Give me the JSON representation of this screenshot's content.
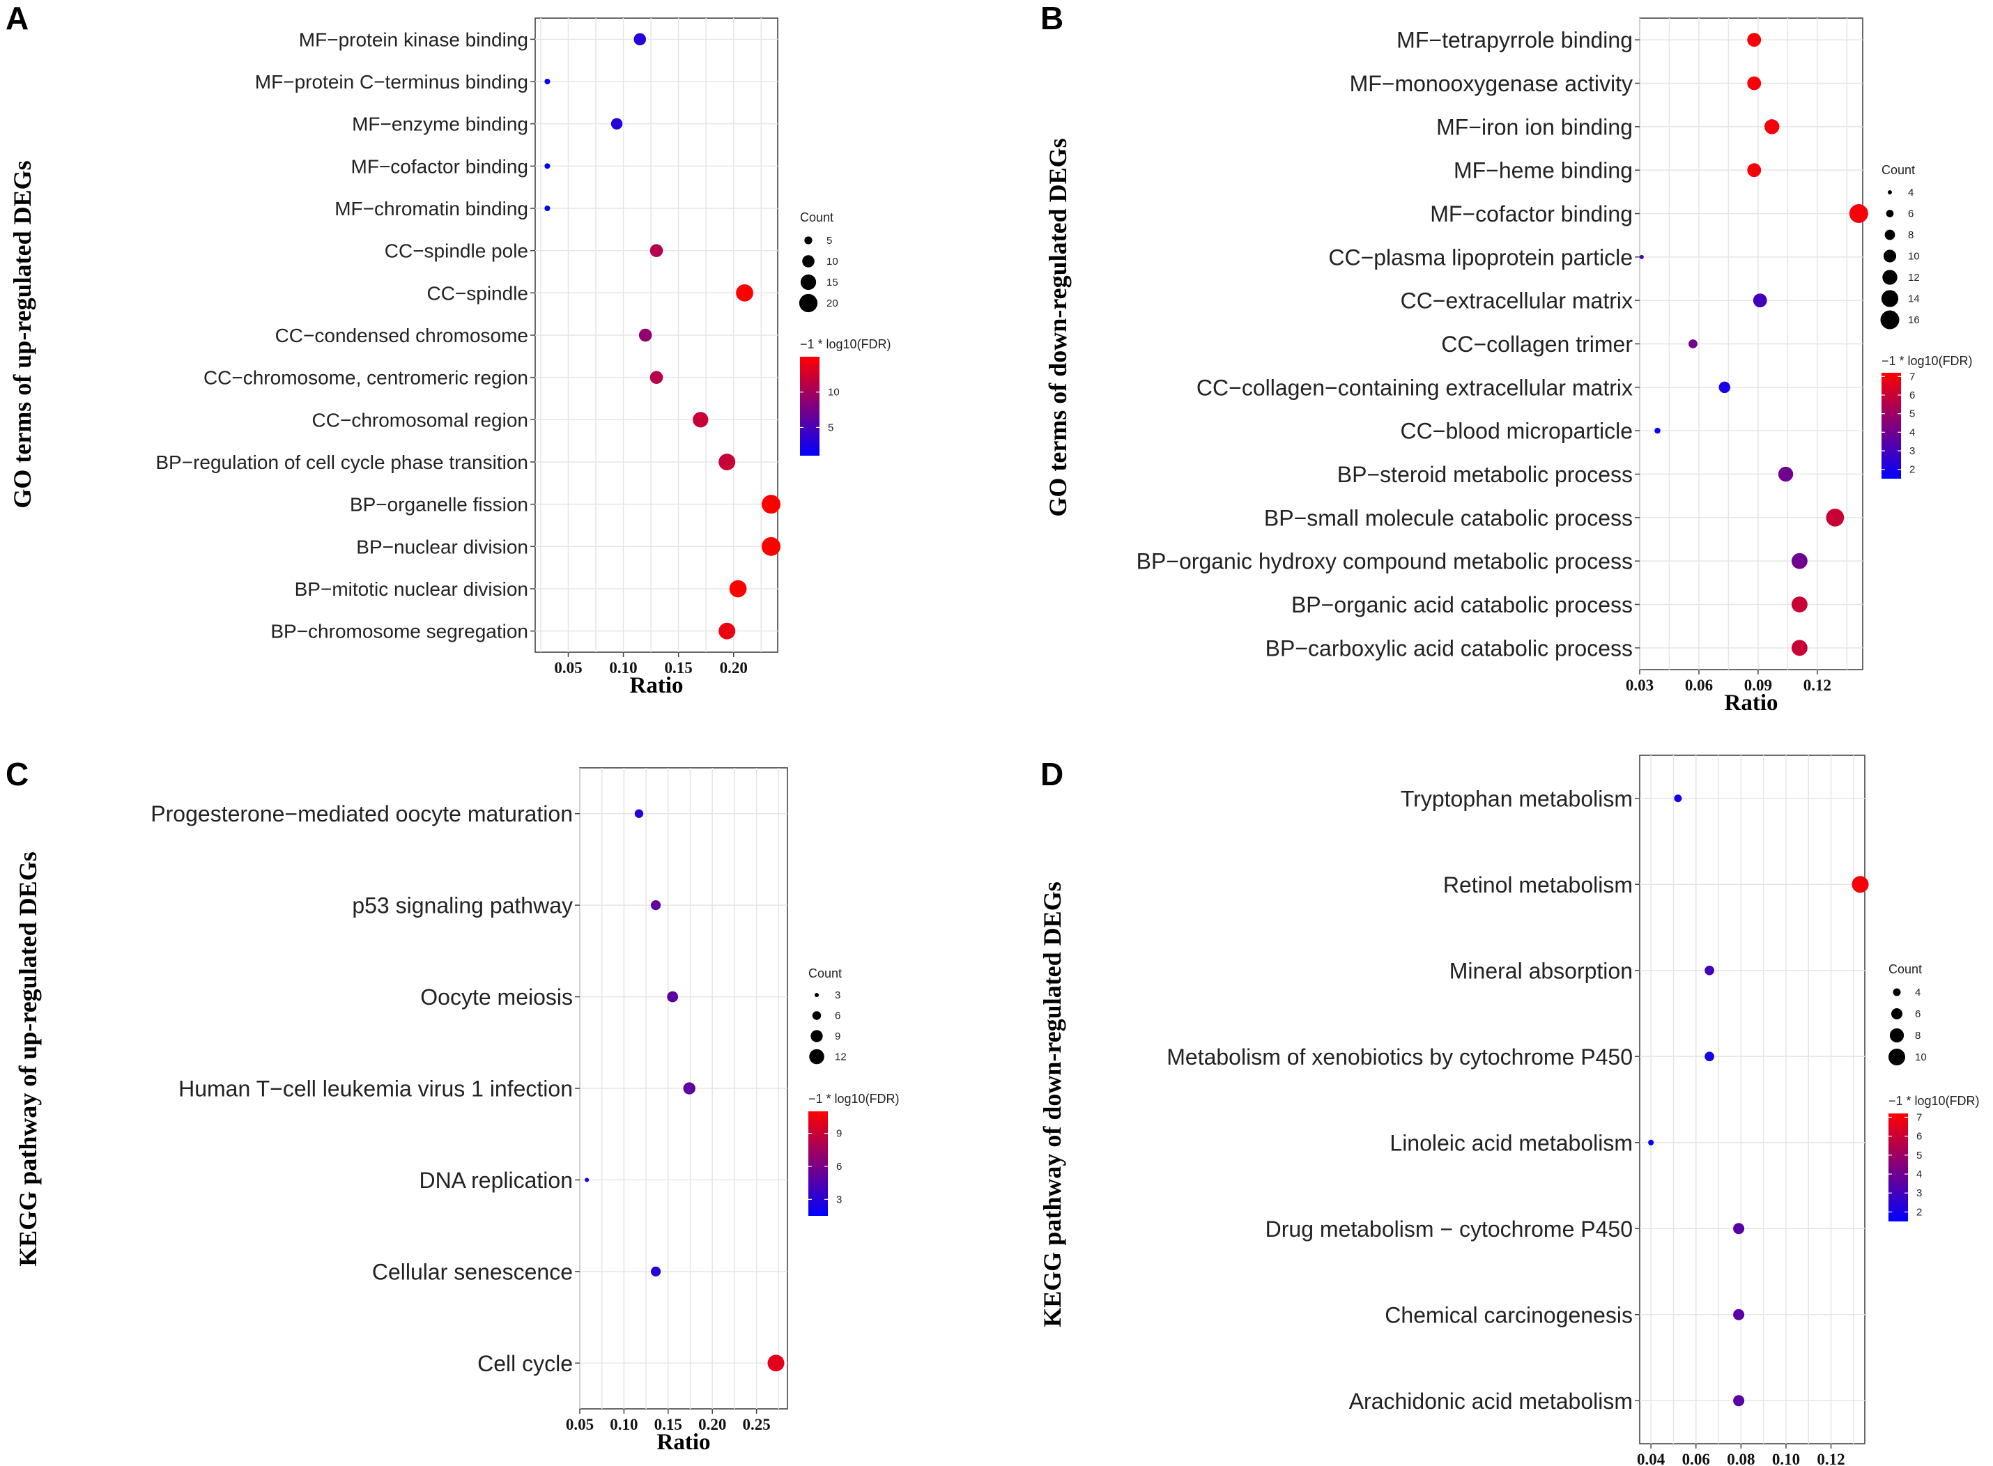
{
  "chart_data": [
    {
      "panel_label": "A",
      "type": "scatter",
      "title": "",
      "xlabel": "Ratio",
      "ylabel": "GO terms of up-regulated DEGs",
      "xlim": [
        0.02,
        0.24
      ],
      "xticks": [
        0.05,
        0.1,
        0.15,
        0.2
      ],
      "xtick_labels": [
        "0.05",
        "0.10",
        "0.15",
        "0.20"
      ],
      "categories": [
        "MF−protein kinase binding",
        "MF−protein C−terminus binding",
        "MF−enzyme binding",
        "MF−cofactor binding",
        "MF−chromatin binding",
        "CC−spindle pole",
        "CC−spindle",
        "CC−condensed chromosome",
        "CC−chromosome, centromeric region",
        "CC−chromosomal region",
        "BP−regulation of cell cycle phase transition",
        "BP−organelle fission",
        "BP−nuclear division",
        "BP−mitotic nuclear division",
        "BP−chromosome segregation"
      ],
      "ratio": [
        0.115,
        0.031,
        0.094,
        0.031,
        0.031,
        0.13,
        0.21,
        0.12,
        0.13,
        0.17,
        0.194,
        0.234,
        0.234,
        0.204,
        0.194
      ],
      "count": [
        10,
        3,
        9,
        3,
        3,
        11,
        18,
        11,
        11,
        15,
        17,
        21,
        21,
        18,
        17
      ],
      "neg_log10_fdr": [
        3,
        1,
        3,
        1,
        1,
        11,
        15,
        9,
        11,
        12,
        12,
        15,
        15,
        15,
        14
      ],
      "size_legend": {
        "title": "Count",
        "values": [
          5,
          10,
          15,
          20
        ],
        "labels": [
          "5",
          "10",
          "15",
          "20"
        ]
      },
      "color_legend": {
        "title": "−1 * log10(FDR)",
        "min": 1,
        "max": 15,
        "ticks": [
          5,
          10
        ],
        "tick_labels": [
          "5",
          "10"
        ]
      }
    },
    {
      "panel_label": "B",
      "type": "scatter",
      "title": "",
      "xlabel": "Ratio",
      "ylabel": "GO terms of down-regulated DEGs",
      "xlim": [
        0.03,
        0.143
      ],
      "xticks": [
        0.03,
        0.06,
        0.09,
        0.12
      ],
      "xtick_labels": [
        "0.03",
        "0.06",
        "0.09",
        "0.12"
      ],
      "categories": [
        "MF−tetrapyrrole binding",
        "MF−monooxygenase activity",
        "MF−iron ion binding",
        "MF−heme binding",
        "MF−cofactor binding",
        "CC−plasma lipoprotein particle",
        "CC−extracellular matrix",
        "CC−collagen trimer",
        "CC−collagen−containing extracellular matrix",
        "CC−blood microparticle",
        "BP−steroid metabolic process",
        "BP−small molecule catabolic process",
        "BP−organic hydroxy compound metabolic process",
        "BP−organic acid catabolic process",
        "BP−carboxylic acid catabolic process"
      ],
      "ratio": [
        0.088,
        0.088,
        0.097,
        0.088,
        0.141,
        0.031,
        0.091,
        0.057,
        0.073,
        0.039,
        0.104,
        0.129,
        0.111,
        0.111,
        0.111
      ],
      "count": [
        11,
        11,
        12,
        11,
        16,
        4,
        11,
        7,
        9,
        5,
        12,
        15,
        13,
        13,
        13
      ],
      "neg_log10_fdr": [
        7,
        7,
        7,
        7,
        7,
        3,
        3,
        4,
        2,
        1.5,
        4,
        6,
        4,
        6,
        6
      ],
      "size_legend": {
        "title": "Count",
        "values": [
          4,
          6,
          8,
          10,
          12,
          14,
          16
        ],
        "labels": [
          "4",
          "6",
          "8",
          "10",
          "12",
          "14",
          "16"
        ]
      },
      "color_legend": {
        "title": "−1 * log10(FDR)",
        "min": 1.5,
        "max": 7.2,
        "ticks": [
          2,
          3,
          4,
          5,
          6,
          7
        ],
        "tick_labels": [
          "2",
          "3",
          "4",
          "5",
          "6",
          "7"
        ]
      }
    },
    {
      "panel_label": "C",
      "type": "scatter",
      "title": "",
      "xlabel": "Ratio",
      "ylabel": "KEGG pathway of up-regulated DEGs",
      "xlim": [
        0.05,
        0.285
      ],
      "xticks": [
        0.05,
        0.1,
        0.15,
        0.2,
        0.25
      ],
      "xtick_labels": [
        "0.05",
        "0.10",
        "0.15",
        "0.20",
        "0.25"
      ],
      "categories": [
        "Progesterone−mediated oocyte maturation",
        "p53 signaling pathway",
        "Oocyte meiosis",
        "Human T−cell leukemia virus 1 infection",
        "DNA replication",
        "Cellular senescence",
        "Cell cycle"
      ],
      "ratio": [
        0.117,
        0.136,
        0.155,
        0.174,
        0.058,
        0.136,
        0.272
      ],
      "count": [
        6,
        7,
        8,
        9,
        3,
        7,
        14
      ],
      "neg_log10_fdr": [
        3,
        5,
        5,
        5,
        2,
        3,
        10
      ],
      "size_legend": {
        "title": "Count",
        "values": [
          3,
          6,
          9,
          12
        ],
        "labels": [
          "3",
          "6",
          "9",
          "12"
        ]
      },
      "color_legend": {
        "title": "−1 * log10(FDR)",
        "min": 1.5,
        "max": 11,
        "ticks": [
          3,
          6,
          9
        ],
        "tick_labels": [
          "3",
          "6",
          "9"
        ]
      }
    },
    {
      "panel_label": "D",
      "type": "scatter",
      "title": "",
      "xlabel": "Ratio",
      "ylabel": "KEGG pathway of down-regulated DEGs",
      "xlim": [
        0.035,
        0.135
      ],
      "xticks": [
        0.04,
        0.06,
        0.08,
        0.1,
        0.12
      ],
      "xtick_labels": [
        "0.04",
        "0.06",
        "0.08",
        "0.10",
        "0.12"
      ],
      "categories": [
        "Tryptophan metabolism",
        "Retinol metabolism",
        "Mineral absorption",
        "Metabolism of xenobiotics by cytochrome P450",
        "Linoleic acid metabolism",
        "Drug metabolism − cytochrome P450",
        "Chemical carcinogenesis",
        "Arachidonic acid metabolism"
      ],
      "ratio": [
        0.052,
        0.133,
        0.066,
        0.066,
        0.04,
        0.079,
        0.079,
        0.079
      ],
      "count": [
        4,
        10,
        5,
        5,
        3,
        6,
        6,
        6
      ],
      "neg_log10_fdr": [
        2,
        7,
        3,
        2,
        1.5,
        3.5,
        3.5,
        3.5
      ],
      "size_legend": {
        "title": "Count",
        "values": [
          4,
          6,
          8,
          10
        ],
        "labels": [
          "4",
          "6",
          "8",
          "10"
        ]
      },
      "color_legend": {
        "title": "−1 * log10(FDR)",
        "min": 1.5,
        "max": 7.2,
        "ticks": [
          2,
          3,
          4,
          5,
          6,
          7
        ],
        "tick_labels": [
          "2",
          "3",
          "4",
          "5",
          "6",
          "7"
        ]
      }
    }
  ]
}
